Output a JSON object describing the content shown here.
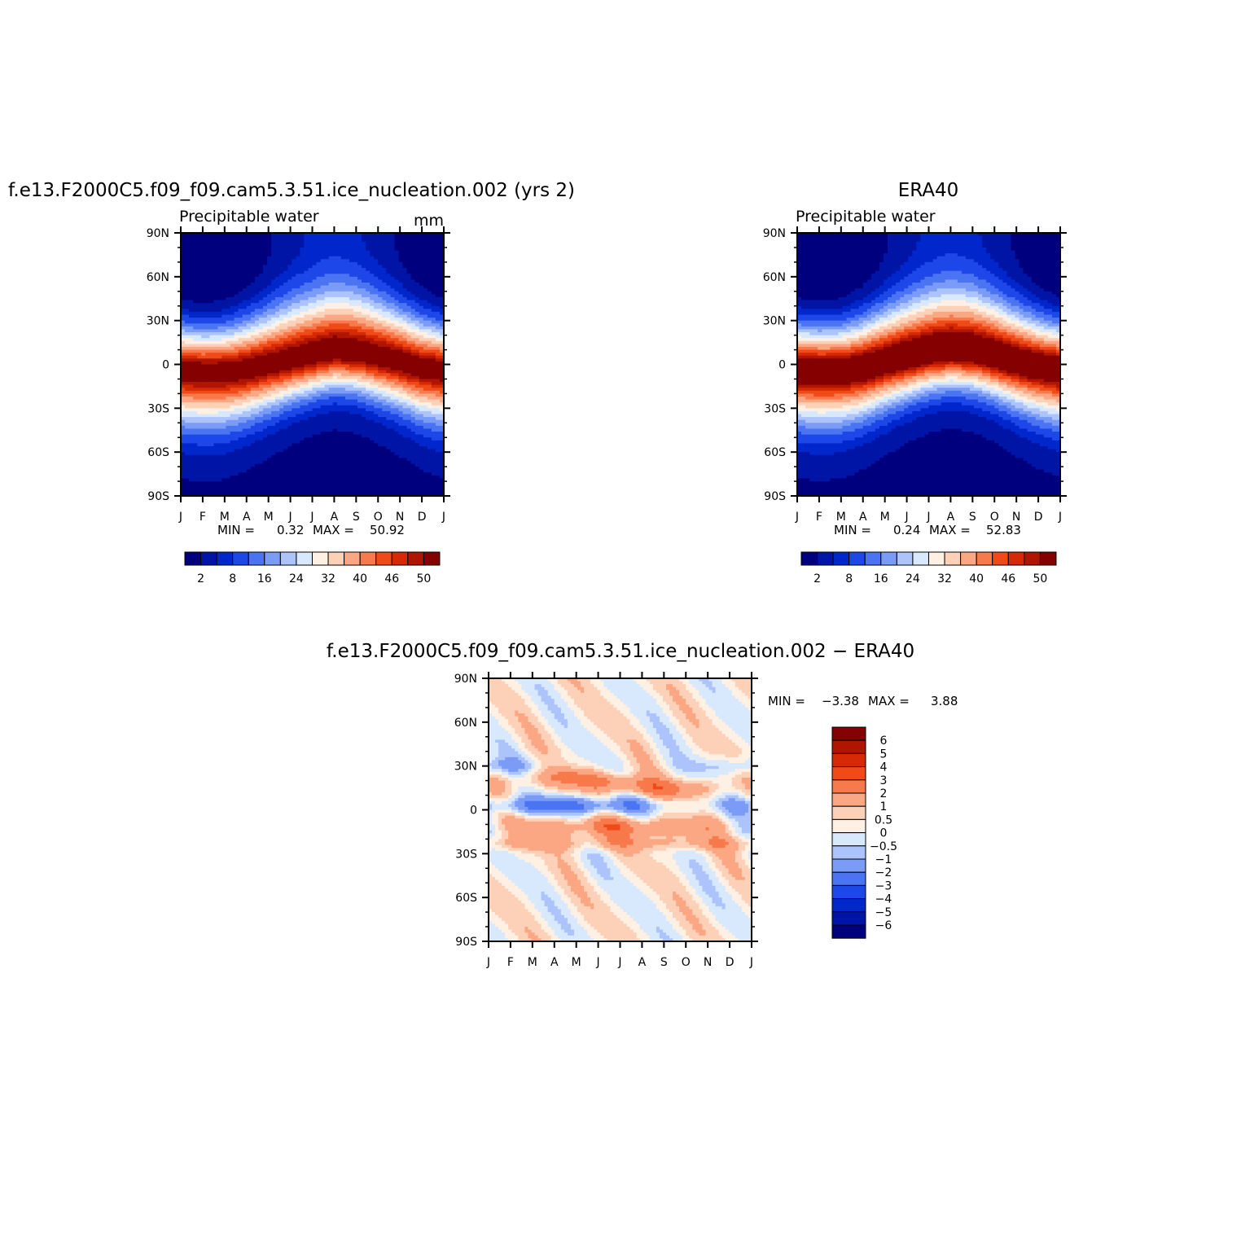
{
  "colors": {
    "pw_levels": [
      "#00007f",
      "#0014a6",
      "#0027cc",
      "#1e47e8",
      "#4a74f2",
      "#7a9cf7",
      "#acc4fb",
      "#d8e8fd",
      "#fff0e4",
      "#fdd0b8",
      "#fba783",
      "#f8794b",
      "#f04a18",
      "#d52a05",
      "#b01500",
      "#850000"
    ],
    "diff_levels": [
      "#00007f",
      "#0014a6",
      "#0027cc",
      "#1e47e8",
      "#4a74f2",
      "#7a9cf7",
      "#acc4fb",
      "#d8e8fd",
      "#fff0e4",
      "#fdd0b8",
      "#fba783",
      "#f8794b",
      "#f04a18",
      "#d52a05",
      "#b01500",
      "#850000"
    ]
  },
  "chart_data": [
    {
      "type": "heatmap",
      "title": "f.e13.F2000C5.f09_f09.cam5.3.51.ice_nucleation.002 (yrs 2)",
      "subtitle": "Precipitable water",
      "units": "mm",
      "x_ticks": [
        "J",
        "F",
        "M",
        "A",
        "M",
        "J",
        "J",
        "A",
        "S",
        "O",
        "N",
        "D",
        "J"
      ],
      "y_ticks": [
        "90N",
        "60N",
        "30N",
        "0",
        "30S",
        "60S",
        "90S"
      ],
      "ylim": [
        -90,
        90
      ],
      "min_label": "MIN =",
      "min_value": "0.32",
      "max_label": "MAX =",
      "max_value": "50.92",
      "colorbar_labels": [
        "2",
        "8",
        "16",
        "24",
        "32",
        "40",
        "46",
        "50"
      ],
      "itcz_lat": [
        -4,
        -5,
        -5,
        -3,
        0,
        3,
        6,
        9,
        8,
        5,
        2,
        -2,
        -4
      ],
      "peak_value": 50.92,
      "min_value_num": 0.32
    },
    {
      "type": "heatmap",
      "title": "ERA40",
      "subtitle": "Precipitable water",
      "x_ticks": [
        "J",
        "F",
        "M",
        "A",
        "M",
        "J",
        "J",
        "A",
        "S",
        "O",
        "N",
        "D",
        "J"
      ],
      "y_ticks": [
        "90N",
        "60N",
        "30N",
        "0",
        "30S",
        "60S",
        "90S"
      ],
      "ylim": [
        -90,
        90
      ],
      "min_label": "MIN =",
      "min_value": "0.24",
      "max_label": "MAX =",
      "max_value": "52.83",
      "colorbar_labels": [
        "2",
        "8",
        "16",
        "24",
        "32",
        "40",
        "46",
        "50"
      ],
      "itcz_lat": [
        -3,
        -4,
        -4,
        -2,
        2,
        5,
        8,
        10,
        9,
        6,
        2,
        -1,
        -3
      ],
      "peak_value": 52.83,
      "min_value_num": 0.24
    },
    {
      "type": "heatmap",
      "title": "f.e13.F2000C5.f09_f09.cam5.3.51.ice_nucleation.002 − ERA40",
      "x_ticks": [
        "J",
        "F",
        "M",
        "A",
        "M",
        "J",
        "J",
        "A",
        "S",
        "O",
        "N",
        "D",
        "J"
      ],
      "y_ticks": [
        "90N",
        "60N",
        "30N",
        "0",
        "30S",
        "60S",
        "90S"
      ],
      "ylim": [
        -90,
        90
      ],
      "min_label": "MIN =",
      "min_value": "−3.38",
      "max_label": "MAX =",
      "max_value": "3.88",
      "colorbar_labels": [
        "6",
        "5",
        "4",
        "3",
        "2",
        "1",
        "0.5",
        "0",
        "−0.5",
        "−1",
        "−2",
        "−3",
        "−4",
        "−5",
        "−6"
      ]
    }
  ]
}
